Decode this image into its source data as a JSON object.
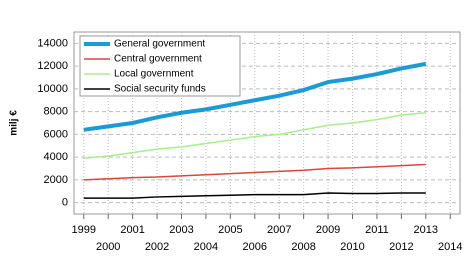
{
  "chart_data": {
    "type": "line",
    "y_label": "milj €",
    "x": [
      1999,
      2000,
      2001,
      2002,
      2003,
      2004,
      2005,
      2006,
      2007,
      2008,
      2009,
      2010,
      2011,
      2012,
      2013
    ],
    "series": [
      {
        "name": "General government",
        "color": "#1a9ad6",
        "width": 4,
        "values": [
          6400,
          6700,
          7000,
          7500,
          7900,
          8200,
          8600,
          9000,
          9400,
          9900,
          10600,
          10900,
          11300,
          11800,
          12200
        ]
      },
      {
        "name": "Central government",
        "color": "#d9473d",
        "width": 1.5,
        "values": [
          2000,
          2100,
          2200,
          2250,
          2350,
          2450,
          2550,
          2650,
          2750,
          2850,
          3000,
          3050,
          3150,
          3250,
          3350
        ]
      },
      {
        "name": "Local government",
        "color": "#a6ef8a",
        "width": 1.5,
        "values": [
          3900,
          4100,
          4400,
          4700,
          4900,
          5200,
          5500,
          5800,
          6000,
          6400,
          6800,
          7000,
          7300,
          7700,
          7900
        ]
      },
      {
        "name": "Social security funds",
        "color": "#000000",
        "width": 1.5,
        "values": [
          400,
          400,
          400,
          500,
          550,
          600,
          650,
          700,
          700,
          700,
          850,
          800,
          800,
          850,
          850
        ]
      }
    ],
    "xlim": [
      1998.6,
      2014.4
    ],
    "xticks": [
      1999,
      2000,
      2001,
      2002,
      2003,
      2004,
      2005,
      2006,
      2007,
      2008,
      2009,
      2010,
      2011,
      2012,
      2013,
      2014
    ],
    "ylim": [
      -1000,
      15000
    ],
    "yticks": [
      0,
      2000,
      4000,
      6000,
      8000,
      10000,
      12000,
      14000
    ],
    "grid": true,
    "legend": "top-left"
  }
}
